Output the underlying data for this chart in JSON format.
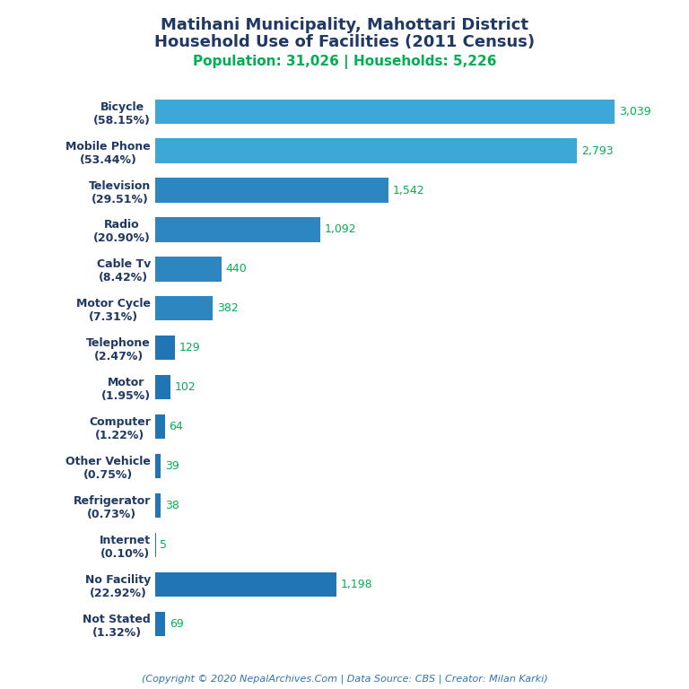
{
  "title_line1": "Matihani Municipality, Mahottari District",
  "title_line2": "Household Use of Facilities (2011 Census)",
  "subtitle": "Population: 31,026 | Households: 5,226",
  "footer": "(Copyright © 2020 NepalArchives.Com | Data Source: CBS | Creator: Milan Karki)",
  "categories": [
    "Not Stated\n(1.32%)",
    "No Facility\n(22.92%)",
    "Internet\n(0.10%)",
    "Refrigerator\n(0.73%)",
    "Other Vehicle\n(0.75%)",
    "Computer\n(1.22%)",
    "Motor\n(1.95%)",
    "Telephone\n(2.47%)",
    "Motor Cycle\n(7.31%)",
    "Cable Tv\n(8.42%)",
    "Radio\n(20.90%)",
    "Television\n(29.51%)",
    "Mobile Phone\n(53.44%)",
    "Bicycle\n(58.15%)"
  ],
  "values": [
    69,
    1198,
    5,
    38,
    39,
    64,
    102,
    129,
    382,
    440,
    1092,
    1542,
    2793,
    3039
  ],
  "bar_colors": [
    "#2175B5",
    "#2175B5",
    "#2175B5",
    "#2175B5",
    "#2175B5",
    "#2175B5",
    "#2175B5",
    "#2175B5",
    "#2E86C1",
    "#2E86C1",
    "#2E86C1",
    "#2E86C1",
    "#3DA8D8",
    "#3DA8D8"
  ],
  "title_color": "#1F3864",
  "subtitle_color": "#00B050",
  "label_color": "#1F3864",
  "value_color": "#00B050",
  "footer_color": "#2E75B6",
  "background_color": "#FFFFFF",
  "xlim": [
    0,
    3350
  ],
  "figsize": [
    7.68,
    7.68
  ],
  "dpi": 100
}
